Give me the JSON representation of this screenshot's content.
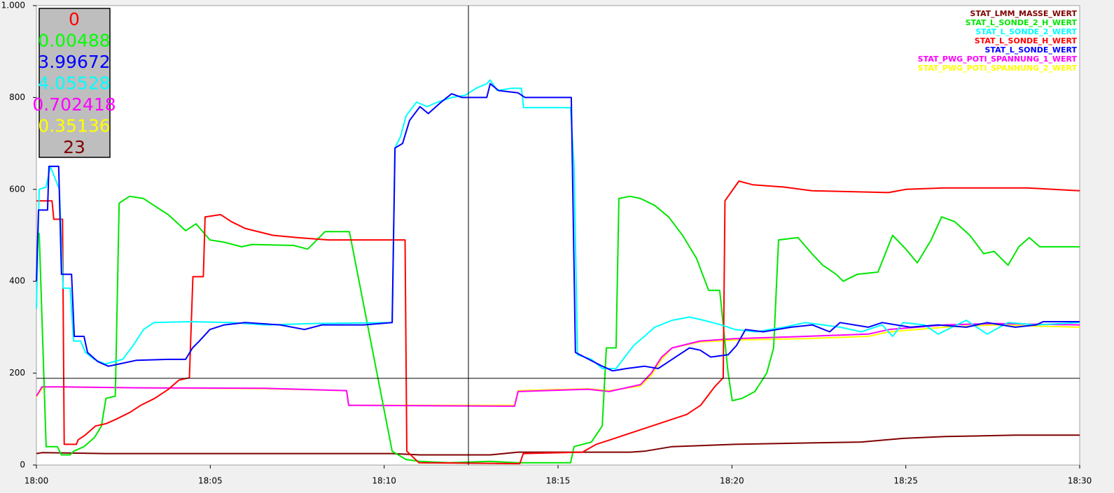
{
  "chart_data": {
    "type": "line",
    "xlim": [
      0,
      30
    ],
    "xticks": [
      {
        "value": 0,
        "label": "18:00"
      },
      {
        "value": 5,
        "label": "18:05"
      },
      {
        "value": 10,
        "label": "18:10"
      },
      {
        "value": 15,
        "label": "18:15"
      },
      {
        "value": 20,
        "label": "18:20"
      },
      {
        "value": 25,
        "label": "18:25"
      },
      {
        "value": 30,
        "label": "18:30"
      }
    ],
    "ylim": [
      0,
      1000
    ],
    "yticks": [
      0,
      200,
      400,
      600,
      800,
      {
        "value": 1000,
        "label": "1.000"
      }
    ],
    "grid": false,
    "legend": "top-right",
    "readout": [
      {
        "text": "0",
        "color": "#ff0000"
      },
      {
        "text": "0.00488",
        "color": "#00ff00"
      },
      {
        "text": "3.99672",
        "color": "#0000ff"
      },
      {
        "text": "4.05528",
        "color": "#00ffff"
      },
      {
        "text": "0.702418",
        "color": "#ff00ff"
      },
      {
        "text": "0.35136",
        "color": "#ffff00"
      },
      {
        "text": "23",
        "color": "#800000"
      }
    ],
    "series": [
      {
        "name": "STAT_LMM_MASSE_WERT",
        "color": "#800000",
        "x": [
          0,
          0.16,
          1.97,
          10.23,
          11.03,
          13.05,
          13.85,
          17.07,
          17.48,
          18.28,
          20.09,
          22.11,
          23.72,
          24.92,
          26.13,
          28.15,
          30
        ],
        "values": [
          25,
          27,
          25,
          25,
          22,
          22,
          28,
          28,
          30,
          40,
          45,
          48,
          50,
          58,
          62,
          65,
          65
        ]
      },
      {
        "name": "STAT_L_SONDE_2_H_WERT",
        "color": "#00e600",
        "x": [
          0.08,
          0.28,
          0.6,
          0.72,
          0.97,
          1.07,
          1.37,
          1.67,
          1.87,
          2.0,
          2.27,
          2.38,
          2.68,
          3.08,
          3.38,
          3.79,
          4.08,
          4.29,
          4.59,
          4.99,
          5.4,
          5.9,
          6.2,
          7.4,
          7.8,
          8.0,
          8.3,
          9.0,
          10.23,
          10.63,
          11.03,
          11.84,
          13.05,
          13.85,
          15.36,
          15.46,
          15.96,
          16.27,
          16.39,
          16.67,
          16.75,
          17.07,
          17.37,
          17.78,
          18.18,
          18.58,
          18.98,
          19.33,
          19.65,
          19.89,
          20.01,
          20.29,
          20.66,
          21.0,
          21.2,
          21.34,
          21.9,
          22.3,
          22.61,
          23.0,
          23.2,
          23.6,
          24.2,
          24.62,
          25.0,
          25.33,
          25.73,
          26.03,
          26.4,
          26.84,
          27.24,
          27.54,
          27.94,
          28.25,
          28.55,
          28.85,
          30
        ],
        "values": [
          505,
          40,
          40,
          22,
          22,
          30,
          40,
          60,
          85,
          145,
          150,
          570,
          585,
          580,
          565,
          545,
          525,
          510,
          525,
          490,
          485,
          475,
          480,
          478,
          470,
          485,
          508,
          508,
          30,
          12,
          8,
          5,
          8,
          5,
          5,
          40,
          50,
          85,
          255,
          255,
          580,
          585,
          580,
          565,
          540,
          500,
          450,
          380,
          380,
          200,
          140,
          145,
          160,
          200,
          255,
          490,
          495,
          460,
          435,
          415,
          400,
          415,
          420,
          500,
          470,
          440,
          490,
          540,
          530,
          500,
          460,
          465,
          435,
          475,
          495,
          475,
          475
        ]
      },
      {
        "name": "STAT_L_SONDE_2_WERT",
        "color": "#00ffff",
        "x": [
          0,
          0.08,
          0.28,
          0.4,
          0.66,
          0.77,
          0.97,
          1.07,
          1.27,
          1.41,
          1.67,
          1.97,
          2.48,
          2.78,
          3.08,
          3.38,
          4.39,
          5.6,
          6.6,
          8.01,
          10.23,
          10.31,
          10.47,
          10.63,
          10.93,
          11.23,
          11.54,
          11.94,
          12.34,
          12.64,
          12.95,
          13.05,
          13.25,
          13.65,
          13.95,
          14.01,
          15.36,
          15.46,
          15.56,
          15.96,
          16.27,
          16.67,
          16.97,
          17.17,
          17.48,
          17.78,
          18.28,
          18.78,
          19.19,
          19.69,
          20.09,
          20.7,
          21.5,
          22.11,
          23.11,
          23.72,
          24.32,
          24.62,
          24.92,
          25.53,
          25.93,
          26.33,
          26.74,
          27.34,
          27.94,
          28.75,
          30
        ],
        "values": [
          340,
          600,
          605,
          650,
          600,
          385,
          385,
          270,
          270,
          245,
          230,
          220,
          230,
          260,
          295,
          310,
          312,
          310,
          305,
          308,
          310,
          690,
          715,
          760,
          790,
          780,
          790,
          800,
          805,
          820,
          830,
          838,
          815,
          820,
          820,
          778,
          778,
          650,
          240,
          230,
          210,
          210,
          240,
          260,
          280,
          300,
          315,
          322,
          315,
          305,
          295,
          290,
          300,
          310,
          300,
          290,
          305,
          280,
          310,
          305,
          285,
          300,
          315,
          285,
          310,
          305,
          310
        ]
      },
      {
        "name": "STAT_L_SONDE_H_WERT",
        "color": "#ff0000",
        "x": [
          0,
          0.45,
          0.5,
          0.75,
          0.8,
          1.15,
          1.2,
          1.4,
          1.7,
          2.0,
          2.3,
          2.7,
          3.0,
          3.4,
          3.8,
          4.1,
          4.4,
          4.5,
          4.8,
          4.85,
          5.3,
          5.6,
          6.0,
          6.8,
          7.5,
          8.4,
          10.6,
          10.65,
          11.0,
          13.9,
          14.0,
          15.7,
          16.1,
          16.5,
          16.9,
          17.5,
          18.1,
          18.7,
          19.1,
          19.5,
          19.75,
          19.8,
          20.2,
          20.6,
          21.5,
          22.3,
          24.5,
          25.0,
          26.1,
          28.5,
          30
        ],
        "values": [
          575,
          575,
          535,
          535,
          45,
          45,
          55,
          65,
          85,
          90,
          100,
          115,
          130,
          145,
          165,
          185,
          190,
          410,
          410,
          540,
          545,
          530,
          515,
          500,
          495,
          490,
          490,
          30,
          5,
          3,
          25,
          28,
          45,
          55,
          65,
          80,
          95,
          110,
          130,
          170,
          190,
          575,
          618,
          610,
          605,
          597,
          593,
          600,
          603,
          603,
          597
        ]
      },
      {
        "name": "STAT_L_SONDE_WERT",
        "color": "#0000ff",
        "x": [
          0,
          0.06,
          0.32,
          0.36,
          0.64,
          0.72,
          1.01,
          1.09,
          1.37,
          1.47,
          1.77,
          2.07,
          2.38,
          2.88,
          3.79,
          4.29,
          4.49,
          4.69,
          4.99,
          5.4,
          6.0,
          7.01,
          7.71,
          8.21,
          9.42,
          10.23,
          10.31,
          10.53,
          10.73,
          11.03,
          11.27,
          11.64,
          11.94,
          12.24,
          12.95,
          13.05,
          13.29,
          13.85,
          14.05,
          15.38,
          15.5,
          15.76,
          16.27,
          16.57,
          16.97,
          17.48,
          17.88,
          18.18,
          18.48,
          18.78,
          19.09,
          19.39,
          19.89,
          20.13,
          20.39,
          20.9,
          21.7,
          22.31,
          22.81,
          23.11,
          23.92,
          24.32,
          25.13,
          25.93,
          26.74,
          27.34,
          28.15,
          28.75,
          28.95,
          30
        ],
        "values": [
          400,
          555,
          555,
          650,
          650,
          415,
          415,
          280,
          280,
          245,
          225,
          215,
          220,
          228,
          230,
          230,
          255,
          270,
          295,
          305,
          310,
          305,
          295,
          305,
          305,
          310,
          690,
          700,
          750,
          780,
          765,
          790,
          808,
          800,
          800,
          830,
          815,
          810,
          800,
          800,
          245,
          235,
          215,
          205,
          210,
          215,
          210,
          225,
          240,
          255,
          250,
          235,
          240,
          260,
          295,
          290,
          300,
          305,
          290,
          310,
          300,
          310,
          300,
          305,
          300,
          310,
          300,
          305,
          312,
          312
        ]
      },
      {
        "name": "STAT_PWG_POTI_SPANNUNG_1_WERT",
        "color": "#ff00ff",
        "x": [
          0,
          0.16,
          0.77,
          2.98,
          6.6,
          8.92,
          8.98,
          13.75,
          13.85,
          15.86,
          16.47,
          17.37,
          17.68,
          17.98,
          18.28,
          19.09,
          20.09,
          22.11,
          23.92,
          24.52,
          26.13,
          27.54,
          30
        ],
        "values": [
          150,
          170,
          170,
          168,
          167,
          162,
          130,
          128,
          160,
          165,
          160,
          175,
          200,
          235,
          255,
          270,
          275,
          280,
          285,
          295,
          305,
          308,
          305
        ]
      },
      {
        "name": "STAT_PWG_POTI_SPANNUNG_2_WERT",
        "color": "#ffff00",
        "x": [
          0,
          0.2,
          2.98,
          6.6,
          8.92,
          8.98,
          13.75,
          13.85,
          15.86,
          16.47,
          17.37,
          17.68,
          17.98,
          18.28,
          19.09,
          20.09,
          22.11,
          23.92,
          24.52,
          26.13,
          27.54,
          30
        ],
        "values": [
          148,
          170,
          168,
          166,
          162,
          130,
          130,
          162,
          166,
          162,
          172,
          195,
          230,
          255,
          268,
          272,
          275,
          280,
          290,
          300,
          305,
          300
        ]
      }
    ]
  }
}
